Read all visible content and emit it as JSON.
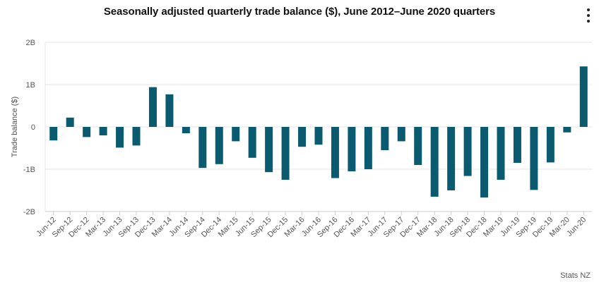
{
  "chart_data": {
    "type": "bar",
    "title": "Seasonally adjusted quarterly trade balance ($), June 2012–June 2020 quarters",
    "xlabel": "",
    "ylabel": "Trade balance ($)",
    "ylim": [
      -2,
      2
    ],
    "y_ticks": [
      {
        "value": 2,
        "label": "2B"
      },
      {
        "value": 1,
        "label": "1B"
      },
      {
        "value": 0,
        "label": "0"
      },
      {
        "value": -1,
        "label": "-1B"
      },
      {
        "value": -2,
        "label": "-2B"
      }
    ],
    "bar_color": "#0b5b70",
    "grid": true,
    "categories": [
      "Jun-12",
      "Sep-12",
      "Dec-12",
      "Mar-13",
      "Jun-13",
      "Sep-13",
      "Dec-13",
      "Mar-14",
      "Jun-14",
      "Sep-14",
      "Dec-14",
      "Mar-15",
      "Jun-15",
      "Sep-15",
      "Dec-15",
      "Mar-16",
      "Jun-16",
      "Sep-16",
      "Dec-16",
      "Mar-17",
      "Jun-17",
      "Sep-17",
      "Dec-17",
      "Mar-18",
      "Jun-18",
      "Sep-18",
      "Dec-18",
      "Mar-19",
      "Jun-19",
      "Sep-19",
      "Dec-19",
      "Mar-20",
      "Jun-20"
    ],
    "values": [
      -0.32,
      0.22,
      -0.24,
      -0.2,
      -0.49,
      -0.44,
      0.94,
      0.77,
      -0.15,
      -0.97,
      -0.88,
      -0.34,
      -0.73,
      -1.07,
      -1.25,
      -0.47,
      -0.42,
      -1.21,
      -1.05,
      -1.0,
      -0.55,
      -0.34,
      -0.9,
      -1.65,
      -1.5,
      -1.16,
      -1.67,
      -1.25,
      -0.85,
      -1.49,
      -0.84,
      -0.13,
      1.43
    ]
  },
  "source": "Stats NZ"
}
